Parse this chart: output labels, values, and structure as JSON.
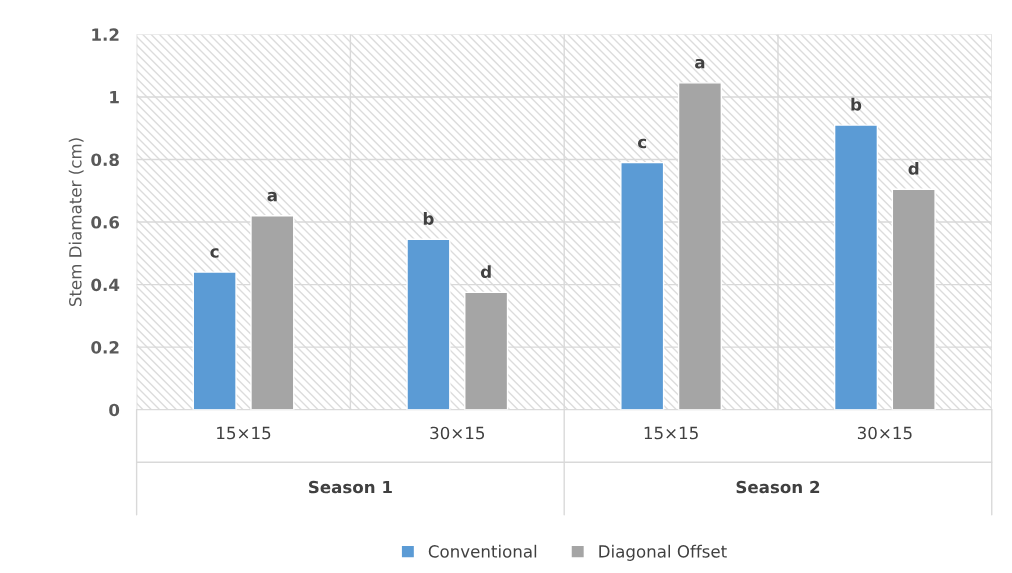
{
  "chart_data": {
    "type": "bar",
    "ylabel": "Stem Diamater (cm)",
    "categories": [
      "15×15",
      "30×15",
      "15×15",
      "30×15"
    ],
    "series": [
      {
        "name": "Conventional",
        "color": "#5b9bd5",
        "values": [
          0.44,
          0.545,
          0.79,
          0.91
        ],
        "value_labels": [
          "c",
          "b",
          "c",
          "b"
        ]
      },
      {
        "name": "Diagonal Offset",
        "color": "#a5a5a5",
        "values": [
          0.62,
          0.375,
          1.045,
          0.705
        ],
        "value_labels": [
          "a",
          "d",
          "a",
          "d"
        ]
      }
    ],
    "annotations": [
      "Season 1",
      "Season 2"
    ],
    "ylim": [
      0,
      1.2
    ],
    "yticks": [
      0,
      0.2,
      0.4,
      0.6,
      0.8,
      1,
      1.2
    ],
    "grid": true,
    "legend": "bottom"
  }
}
